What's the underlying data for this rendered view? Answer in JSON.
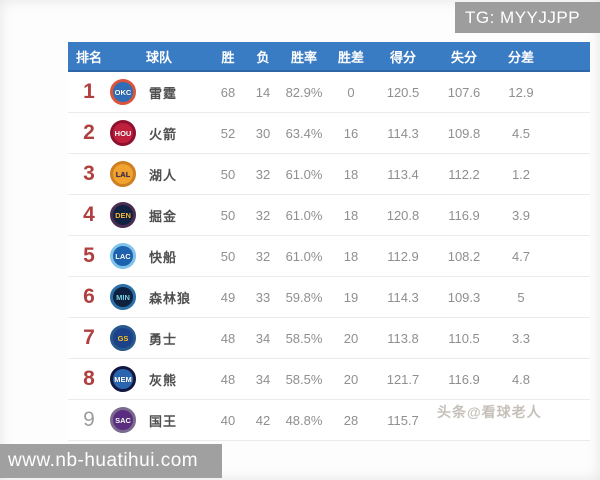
{
  "watermarks": {
    "tg_badge": "TG: MYYJJPP",
    "site": "www.nb-huatihui.com",
    "overlay": "头条@看球老人"
  },
  "colors": {
    "header_bg": "#3a7cc4",
    "rank_red": "#b04040",
    "rank_gray": "#9c9c9c"
  },
  "chart_data": {
    "type": "table",
    "title": "NBA standings (Chinese)",
    "headers": [
      "排名",
      "球队",
      "胜",
      "负",
      "胜率",
      "胜差",
      "得分",
      "失分",
      "分差"
    ],
    "rows": [
      {
        "rank": "1",
        "abbr": "OKC",
        "team": "雷霆",
        "w": "68",
        "l": "14",
        "pct": "82.9%",
        "gb": "0",
        "pf": "120.5",
        "pa": "107.6",
        "diff": "12.9",
        "rank_gray": false,
        "logo_bg": "#2f6db6",
        "logo_ring": "#d9543c",
        "logo_text": "#ffffff"
      },
      {
        "rank": "2",
        "abbr": "HOU",
        "team": "火箭",
        "w": "52",
        "l": "30",
        "pct": "63.4%",
        "gb": "16",
        "pf": "114.3",
        "pa": "109.8",
        "diff": "4.5",
        "rank_gray": false,
        "logo_bg": "#c1203c",
        "logo_ring": "#8e1230",
        "logo_text": "#ffffff"
      },
      {
        "rank": "3",
        "abbr": "LAL",
        "team": "湖人",
        "w": "50",
        "l": "32",
        "pct": "61.0%",
        "gb": "18",
        "pf": "113.4",
        "pa": "112.2",
        "diff": "1.2",
        "rank_gray": false,
        "logo_bg": "#f0a32f",
        "logo_ring": "#cd7f22",
        "logo_text": "#3a2a52"
      },
      {
        "rank": "4",
        "abbr": "DEN",
        "team": "掘金",
        "w": "50",
        "l": "32",
        "pct": "61.0%",
        "gb": "18",
        "pf": "120.8",
        "pa": "116.9",
        "diff": "3.9",
        "rank_gray": false,
        "logo_bg": "#10223f",
        "logo_ring": "#4b2d52",
        "logo_text": "#f5b53f"
      },
      {
        "rank": "5",
        "abbr": "LAC",
        "team": "快船",
        "w": "50",
        "l": "32",
        "pct": "61.0%",
        "gb": "18",
        "pf": "112.9",
        "pa": "108.2",
        "diff": "4.7",
        "rank_gray": false,
        "logo_bg": "#1d62af",
        "logo_ring": "#7fc3e8",
        "logo_text": "#ffffff"
      },
      {
        "rank": "6",
        "abbr": "MIN",
        "team": "森林狼",
        "w": "49",
        "l": "33",
        "pct": "59.8%",
        "gb": "19",
        "pf": "114.3",
        "pa": "109.3",
        "diff": "5",
        "rank_gray": false,
        "logo_bg": "#0e2240",
        "logo_ring": "#2a6fa8",
        "logo_text": "#7fd4e8"
      },
      {
        "rank": "7",
        "abbr": "GS",
        "team": "勇士",
        "w": "48",
        "l": "34",
        "pct": "58.5%",
        "gb": "20",
        "pf": "113.8",
        "pa": "110.5",
        "diff": "3.3",
        "rank_gray": false,
        "logo_bg": "#1d428a",
        "logo_ring": "#27598c",
        "logo_text": "#ffc72c"
      },
      {
        "rank": "8",
        "abbr": "MEM",
        "team": "灰熊",
        "w": "48",
        "l": "34",
        "pct": "58.5%",
        "gb": "20",
        "pf": "121.7",
        "pa": "116.9",
        "diff": "4.8",
        "rank_gray": false,
        "logo_bg": "#2a66b0",
        "logo_ring": "#12173f",
        "logo_text": "#ffffff"
      },
      {
        "rank": "9",
        "abbr": "SAC",
        "team": "国王",
        "w": "40",
        "l": "42",
        "pct": "48.8%",
        "gb": "28",
        "pf": "115.7",
        "pa": "",
        "diff": "",
        "rank_gray": true,
        "logo_bg": "#5a2d81",
        "logo_ring": "#7a6a8e",
        "logo_text": "#ffffff"
      }
    ]
  }
}
